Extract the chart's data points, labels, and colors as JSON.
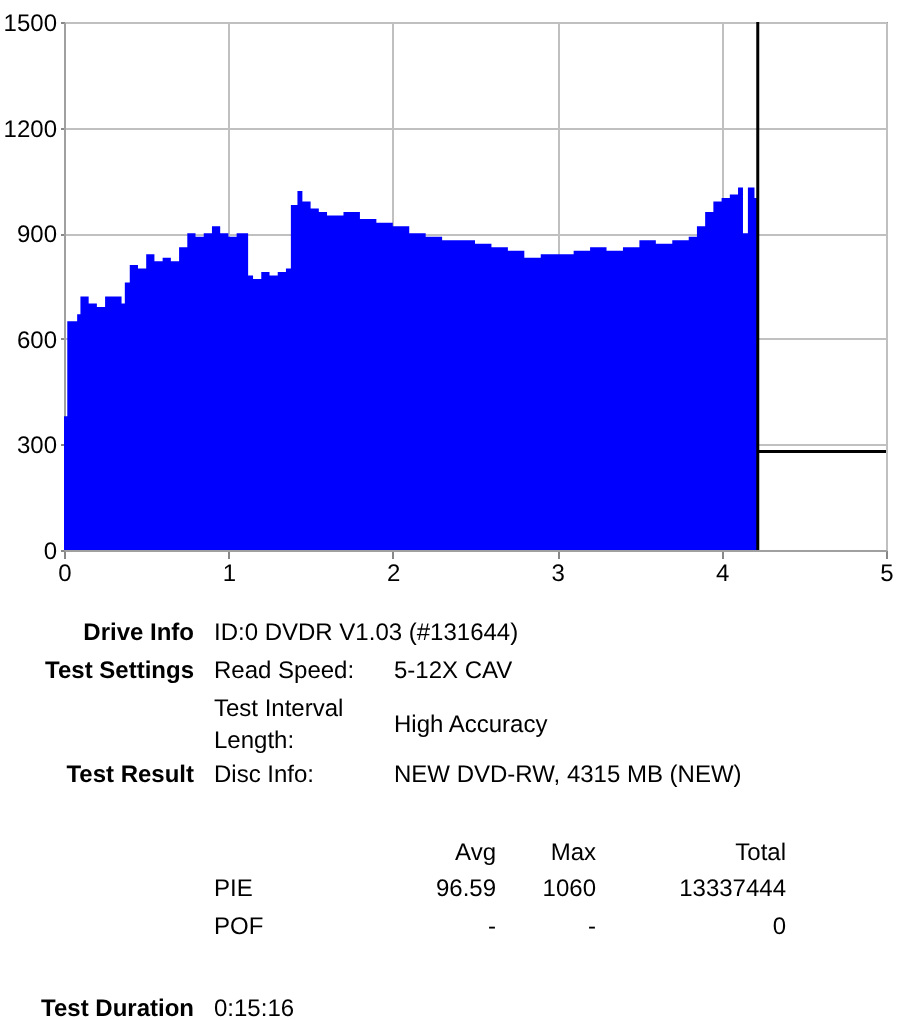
{
  "chart_data": {
    "type": "area",
    "x": [
      0,
      0.02,
      0.08,
      0.1,
      0.15,
      0.2,
      0.25,
      0.3,
      0.35,
      0.37,
      0.4,
      0.45,
      0.5,
      0.55,
      0.6,
      0.65,
      0.7,
      0.75,
      0.8,
      0.85,
      0.9,
      0.95,
      1.0,
      1.05,
      1.1,
      1.12,
      1.15,
      1.2,
      1.25,
      1.3,
      1.35,
      1.38,
      1.42,
      1.45,
      1.5,
      1.55,
      1.6,
      1.7,
      1.8,
      1.9,
      2.0,
      2.1,
      2.2,
      2.3,
      2.4,
      2.5,
      2.6,
      2.7,
      2.8,
      2.9,
      3.0,
      3.1,
      3.2,
      3.3,
      3.4,
      3.5,
      3.6,
      3.7,
      3.8,
      3.85,
      3.9,
      3.95,
      4.0,
      4.05,
      4.1,
      4.13,
      4.16,
      4.2,
      4.22
    ],
    "series": [
      {
        "color": "#0000ff",
        "values": [
          380,
          650,
          670,
          720,
          700,
          690,
          720,
          720,
          700,
          760,
          810,
          800,
          840,
          820,
          830,
          820,
          860,
          900,
          890,
          900,
          920,
          900,
          890,
          900,
          900,
          780,
          770,
          790,
          780,
          790,
          800,
          980,
          1020,
          990,
          970,
          960,
          950,
          960,
          940,
          930,
          920,
          900,
          890,
          880,
          880,
          870,
          860,
          850,
          830,
          840,
          840,
          850,
          860,
          850,
          860,
          880,
          870,
          880,
          890,
          920,
          960,
          990,
          1000,
          1010,
          1030,
          900,
          1030,
          1000,
          960
        ]
      }
    ],
    "xlim": [
      0,
      5
    ],
    "xticks": [
      0,
      1,
      2,
      3,
      4,
      5
    ],
    "ylim": [
      0,
      1500
    ],
    "yticks": [
      0,
      300,
      600,
      900,
      1200,
      1500
    ],
    "grid": true,
    "ref_lines": [
      {
        "axis": "y",
        "value": 280,
        "color": "#000000"
      },
      {
        "axis": "x",
        "value": 4.22,
        "color": "#000000"
      }
    ],
    "annotations": [
      "Drive Info",
      "ID:0 DVDR V1.03 (#131644)",
      "Test Settings",
      "Read Speed:",
      "5-12X CAV",
      "Test Interval",
      "Length:",
      "High Accuracy",
      "Test Result",
      "Disc Info:",
      "NEW DVD-RW, 4315 MB (NEW)",
      "Avg",
      "Max",
      "Total",
      "PIE",
      "96.59",
      "1060",
      "13337444",
      "POF",
      "-",
      "-",
      "0",
      "Test Duration",
      "0:15:16"
    ]
  }
}
